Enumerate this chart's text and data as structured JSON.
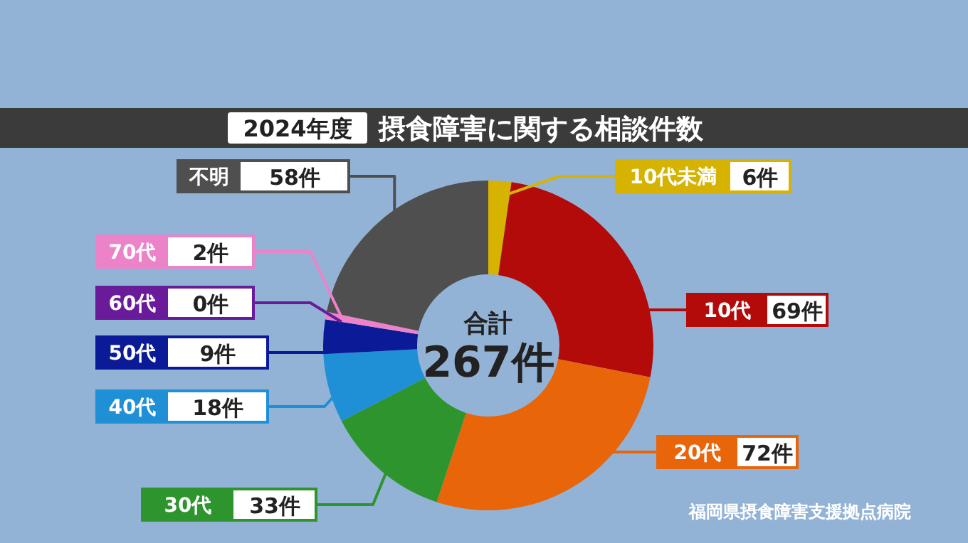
{
  "chart_data": {
    "type": "donut",
    "title": "摂食障害に関する相談件数",
    "subtitle": "2024年度",
    "categories": [
      "10代未満",
      "10代",
      "20代",
      "30代",
      "40代",
      "50代",
      "60代",
      "70代",
      "不明"
    ],
    "values": [
      6,
      69,
      72,
      33,
      18,
      9,
      0,
      2,
      58
    ],
    "colors": [
      "#d6b300",
      "#b30a0a",
      "#e8650a",
      "#2e952e",
      "#1f8fd6",
      "#0b1a96",
      "#6a1b9a",
      "#ec82c8",
      "#4f4f4f"
    ],
    "value_labels": [
      "6件",
      "69件",
      "72件",
      "33件",
      "18件",
      "9件",
      "0件",
      "2件",
      "58件"
    ],
    "totals": [
      "267件"
    ],
    "legend": "left",
    "annotations": [
      "合計",
      "福岡県摂食障害支援拠点病院"
    ]
  }
}
